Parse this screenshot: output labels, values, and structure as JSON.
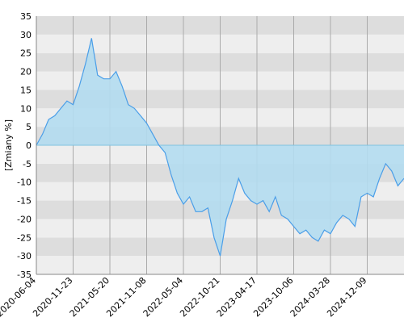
{
  "chart_data": {
    "type": "area",
    "ylabel": "[Zmiany %]",
    "categories": [
      "2020-06-04",
      null,
      null,
      null,
      null,
      null,
      "2020-11-23",
      null,
      null,
      null,
      null,
      null,
      "2021-05-20",
      null,
      null,
      null,
      null,
      null,
      "2021-11-08",
      null,
      null,
      null,
      null,
      null,
      "2022-05-04",
      null,
      null,
      null,
      null,
      null,
      "2022-10-21",
      null,
      null,
      null,
      null,
      null,
      "2023-04-17",
      null,
      null,
      null,
      null,
      null,
      "2023-10-06",
      null,
      null,
      null,
      null,
      null,
      "2024-03-28",
      null,
      null,
      null,
      null,
      null,
      "2024-12-09",
      null,
      null,
      null,
      null,
      null,
      null
    ],
    "series": [
      {
        "name": "Zmiany",
        "color": "#4a9ee8",
        "fill": "#b3dcef",
        "values": [
          0,
          3,
          7,
          8,
          10,
          12,
          11,
          16,
          22,
          29,
          19,
          18,
          18,
          20,
          16,
          11,
          10,
          8,
          6,
          3,
          0,
          -2,
          -8,
          -13,
          -16,
          -14,
          -18,
          -18,
          -17,
          -25,
          -30,
          -20,
          -15,
          -9,
          -13,
          -15,
          -16,
          -15,
          -18,
          -14,
          -19,
          -20,
          -22,
          -24,
          -23,
          -25,
          -26,
          -23,
          -24,
          -21,
          -19,
          -20,
          -22,
          -14,
          -13,
          -14,
          -9,
          -5,
          -7,
          -11,
          -9
        ]
      }
    ],
    "ylim": [
      -35,
      35
    ],
    "yticks": [
      -35,
      -30,
      -25,
      -20,
      -15,
      -10,
      -5,
      0,
      5,
      10,
      15,
      20,
      25,
      30,
      35
    ],
    "grid": true
  }
}
